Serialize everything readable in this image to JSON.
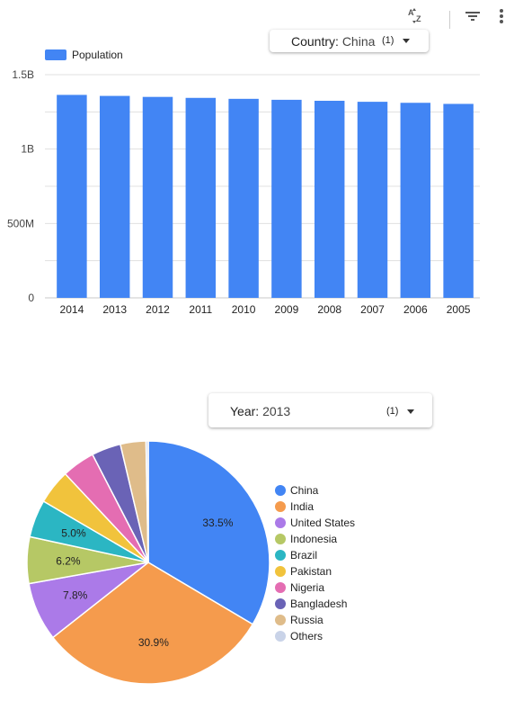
{
  "toolbar": {
    "sort_icon_glyph": "A↓Z",
    "filter_icon": "filter-icon",
    "more_icon": "more-vert-icon"
  },
  "filters": {
    "country": {
      "label": "Country",
      "value": "China",
      "count": "(1)"
    },
    "year": {
      "label": "Year",
      "value": "2013",
      "count": "(1)"
    }
  },
  "colors": {
    "bar": "#4285f4",
    "grid": "#e0e0e0",
    "axis": "#c8c8c8"
  },
  "chart_data": [
    {
      "type": "bar",
      "legend": "top-left",
      "grid": true,
      "categories": [
        "2014",
        "2013",
        "2012",
        "2011",
        "2010",
        "2009",
        "2008",
        "2007",
        "2006",
        "2005"
      ],
      "series": [
        {
          "name": "Population",
          "values": [
            1364270000,
            1357380000,
            1350695000,
            1344130000,
            1337705000,
            1331260000,
            1324655000,
            1317885000,
            1311020000,
            1303720000
          ]
        }
      ],
      "ylim": [
        0,
        1500000000
      ],
      "yticks": [
        {
          "value": 0,
          "label": "0"
        },
        {
          "value": 500000000,
          "label": "500M"
        },
        {
          "value": 1000000000,
          "label": "1B"
        },
        {
          "value": 1500000000,
          "label": "1.5B"
        }
      ]
    },
    {
      "type": "pie",
      "legend": "right",
      "slices": [
        {
          "name": "China",
          "value": 33.5,
          "label": "33.5%",
          "color": "#4285f4"
        },
        {
          "name": "India",
          "value": 30.9,
          "label": "30.9%",
          "color": "#f59b4d"
        },
        {
          "name": "United States",
          "value": 7.8,
          "label": "7.8%",
          "color": "#ab7ae8"
        },
        {
          "name": "Indonesia",
          "value": 6.2,
          "label": "6.2%",
          "color": "#b6c865"
        },
        {
          "name": "Brazil",
          "value": 5.0,
          "label": "5.0%",
          "color": "#2bb6c3"
        },
        {
          "name": "Pakistan",
          "value": 4.6,
          "label": "",
          "color": "#f1c33c"
        },
        {
          "name": "Nigeria",
          "value": 4.4,
          "label": "",
          "color": "#e46db2"
        },
        {
          "name": "Bangladesh",
          "value": 3.9,
          "label": "",
          "color": "#6a63b6"
        },
        {
          "name": "Russia",
          "value": 3.4,
          "label": "",
          "color": "#dfbc8a"
        },
        {
          "name": "Others",
          "value": 0.3,
          "label": "",
          "color": "#c9d3e8"
        }
      ]
    }
  ]
}
